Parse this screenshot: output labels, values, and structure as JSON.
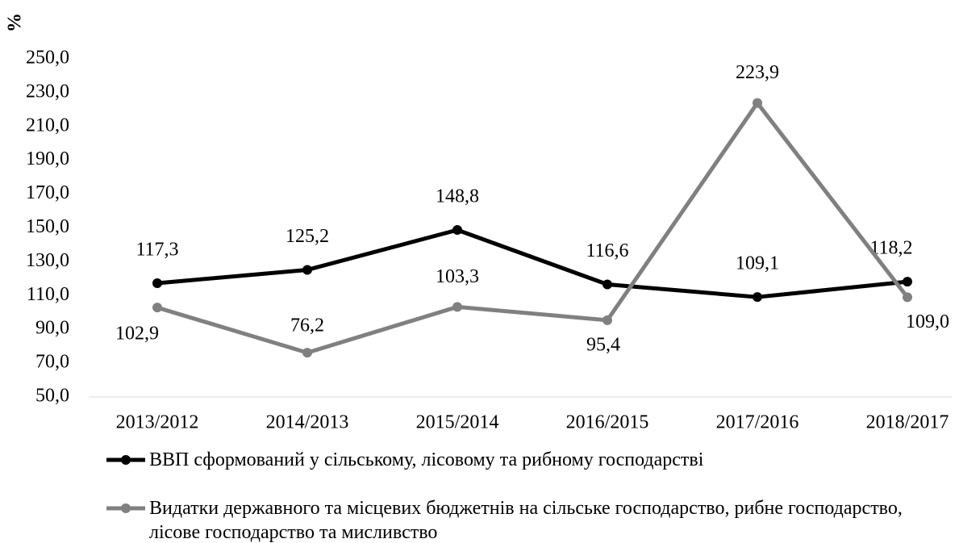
{
  "chart_data": {
    "type": "line",
    "y_label": "%",
    "categories": [
      "2013/2012",
      "2014/2013",
      "2015/2014",
      "2016/2015",
      "2017/2016",
      "2018/2017"
    ],
    "series": [
      {
        "name": "ВВП сформований у сільському, лісовому та рибному господарстві",
        "color": "#000000",
        "values": [
          117.3,
          125.2,
          148.8,
          116.6,
          109.1,
          118.2
        ],
        "value_labels": [
          "117,3",
          "125,2",
          "148,8",
          "116,6",
          "109,1",
          "118,2"
        ]
      },
      {
        "name": "Видатки державного та місцевих бюджетнів на сільське господарство, рибне господарство, лісове господарство та мисливство",
        "color": "#808080",
        "values": [
          102.9,
          76.2,
          103.3,
          95.4,
          223.9,
          109.0
        ],
        "value_labels": [
          "102,9",
          "76,2",
          "103,3",
          "95,4",
          "223,9",
          "109,0"
        ]
      }
    ],
    "ylim": [
      50,
      250
    ],
    "yticks": [
      {
        "value": 50,
        "label": "50,0"
      },
      {
        "value": 70,
        "label": "70,0"
      },
      {
        "value": 90,
        "label": "90,0"
      },
      {
        "value": 110,
        "label": "110,0"
      },
      {
        "value": 130,
        "label": "130,0"
      },
      {
        "value": 150,
        "label": "150,0"
      },
      {
        "value": 170,
        "label": "170,0"
      },
      {
        "value": 190,
        "label": "190,0"
      },
      {
        "value": 210,
        "label": "210,0"
      },
      {
        "value": 230,
        "label": "230,0"
      },
      {
        "value": 250,
        "label": "250,0"
      }
    ],
    "legend": "bottom"
  }
}
